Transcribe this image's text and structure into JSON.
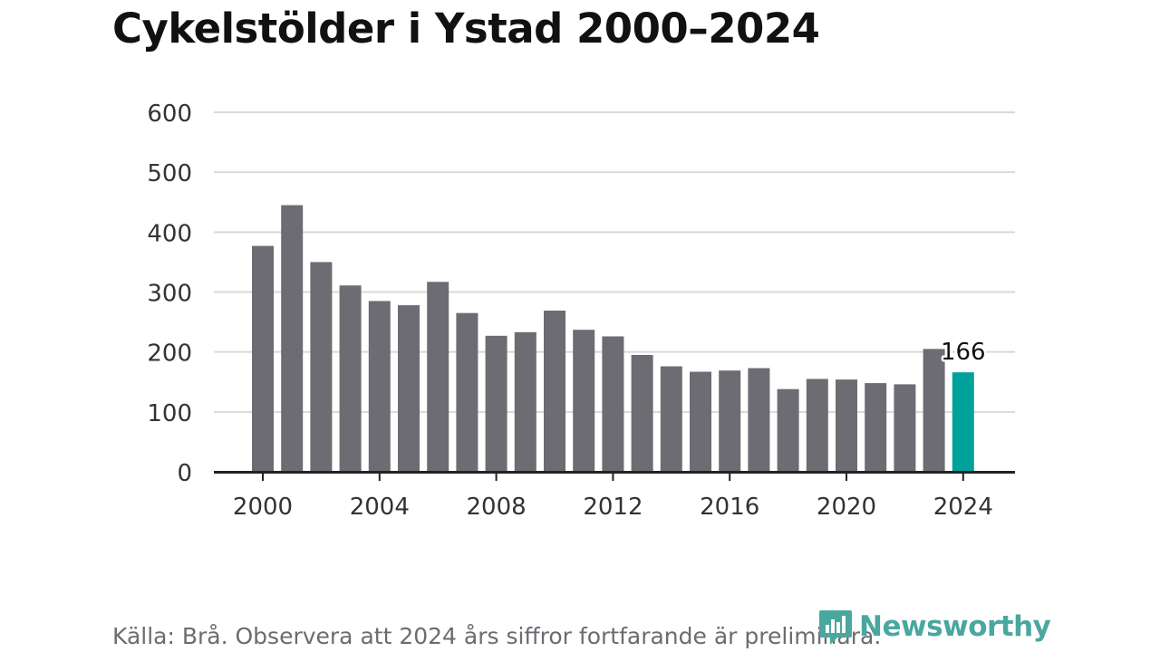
{
  "title": "Cykelstölder i Ystad 2000–2024",
  "footer": "Källa: Brå. Observera att 2024 års siffror fortfarande är preliminära.",
  "brand": {
    "name": "Newsworthy",
    "icon": "newsworthy-logo-icon",
    "color": "#4aa79f"
  },
  "colors": {
    "bar": "#6d6c72",
    "highlight": "#00a19a",
    "grid": "#d9d9d9",
    "axis": "#222222",
    "tick_text": "#333333"
  },
  "chart_data": {
    "type": "bar",
    "x": [
      2000,
      2001,
      2002,
      2003,
      2004,
      2005,
      2006,
      2007,
      2008,
      2009,
      2010,
      2011,
      2012,
      2013,
      2014,
      2015,
      2016,
      2017,
      2018,
      2019,
      2020,
      2021,
      2022,
      2023,
      2024
    ],
    "values": [
      377,
      445,
      350,
      311,
      285,
      278,
      317,
      265,
      227,
      233,
      269,
      237,
      226,
      195,
      176,
      167,
      169,
      173,
      138,
      155,
      154,
      148,
      146,
      205,
      166
    ],
    "highlight_x": 2024,
    "data_labels": [
      {
        "x": 2024,
        "text": "166"
      }
    ],
    "x_ticks": [
      "2000",
      "2004",
      "2008",
      "2012",
      "2016",
      "2020",
      "2024"
    ],
    "y_ticks": [
      "0",
      "100",
      "200",
      "300",
      "400",
      "500",
      "600"
    ],
    "ylim": [
      0,
      600
    ],
    "grid": true,
    "legend": "none"
  }
}
